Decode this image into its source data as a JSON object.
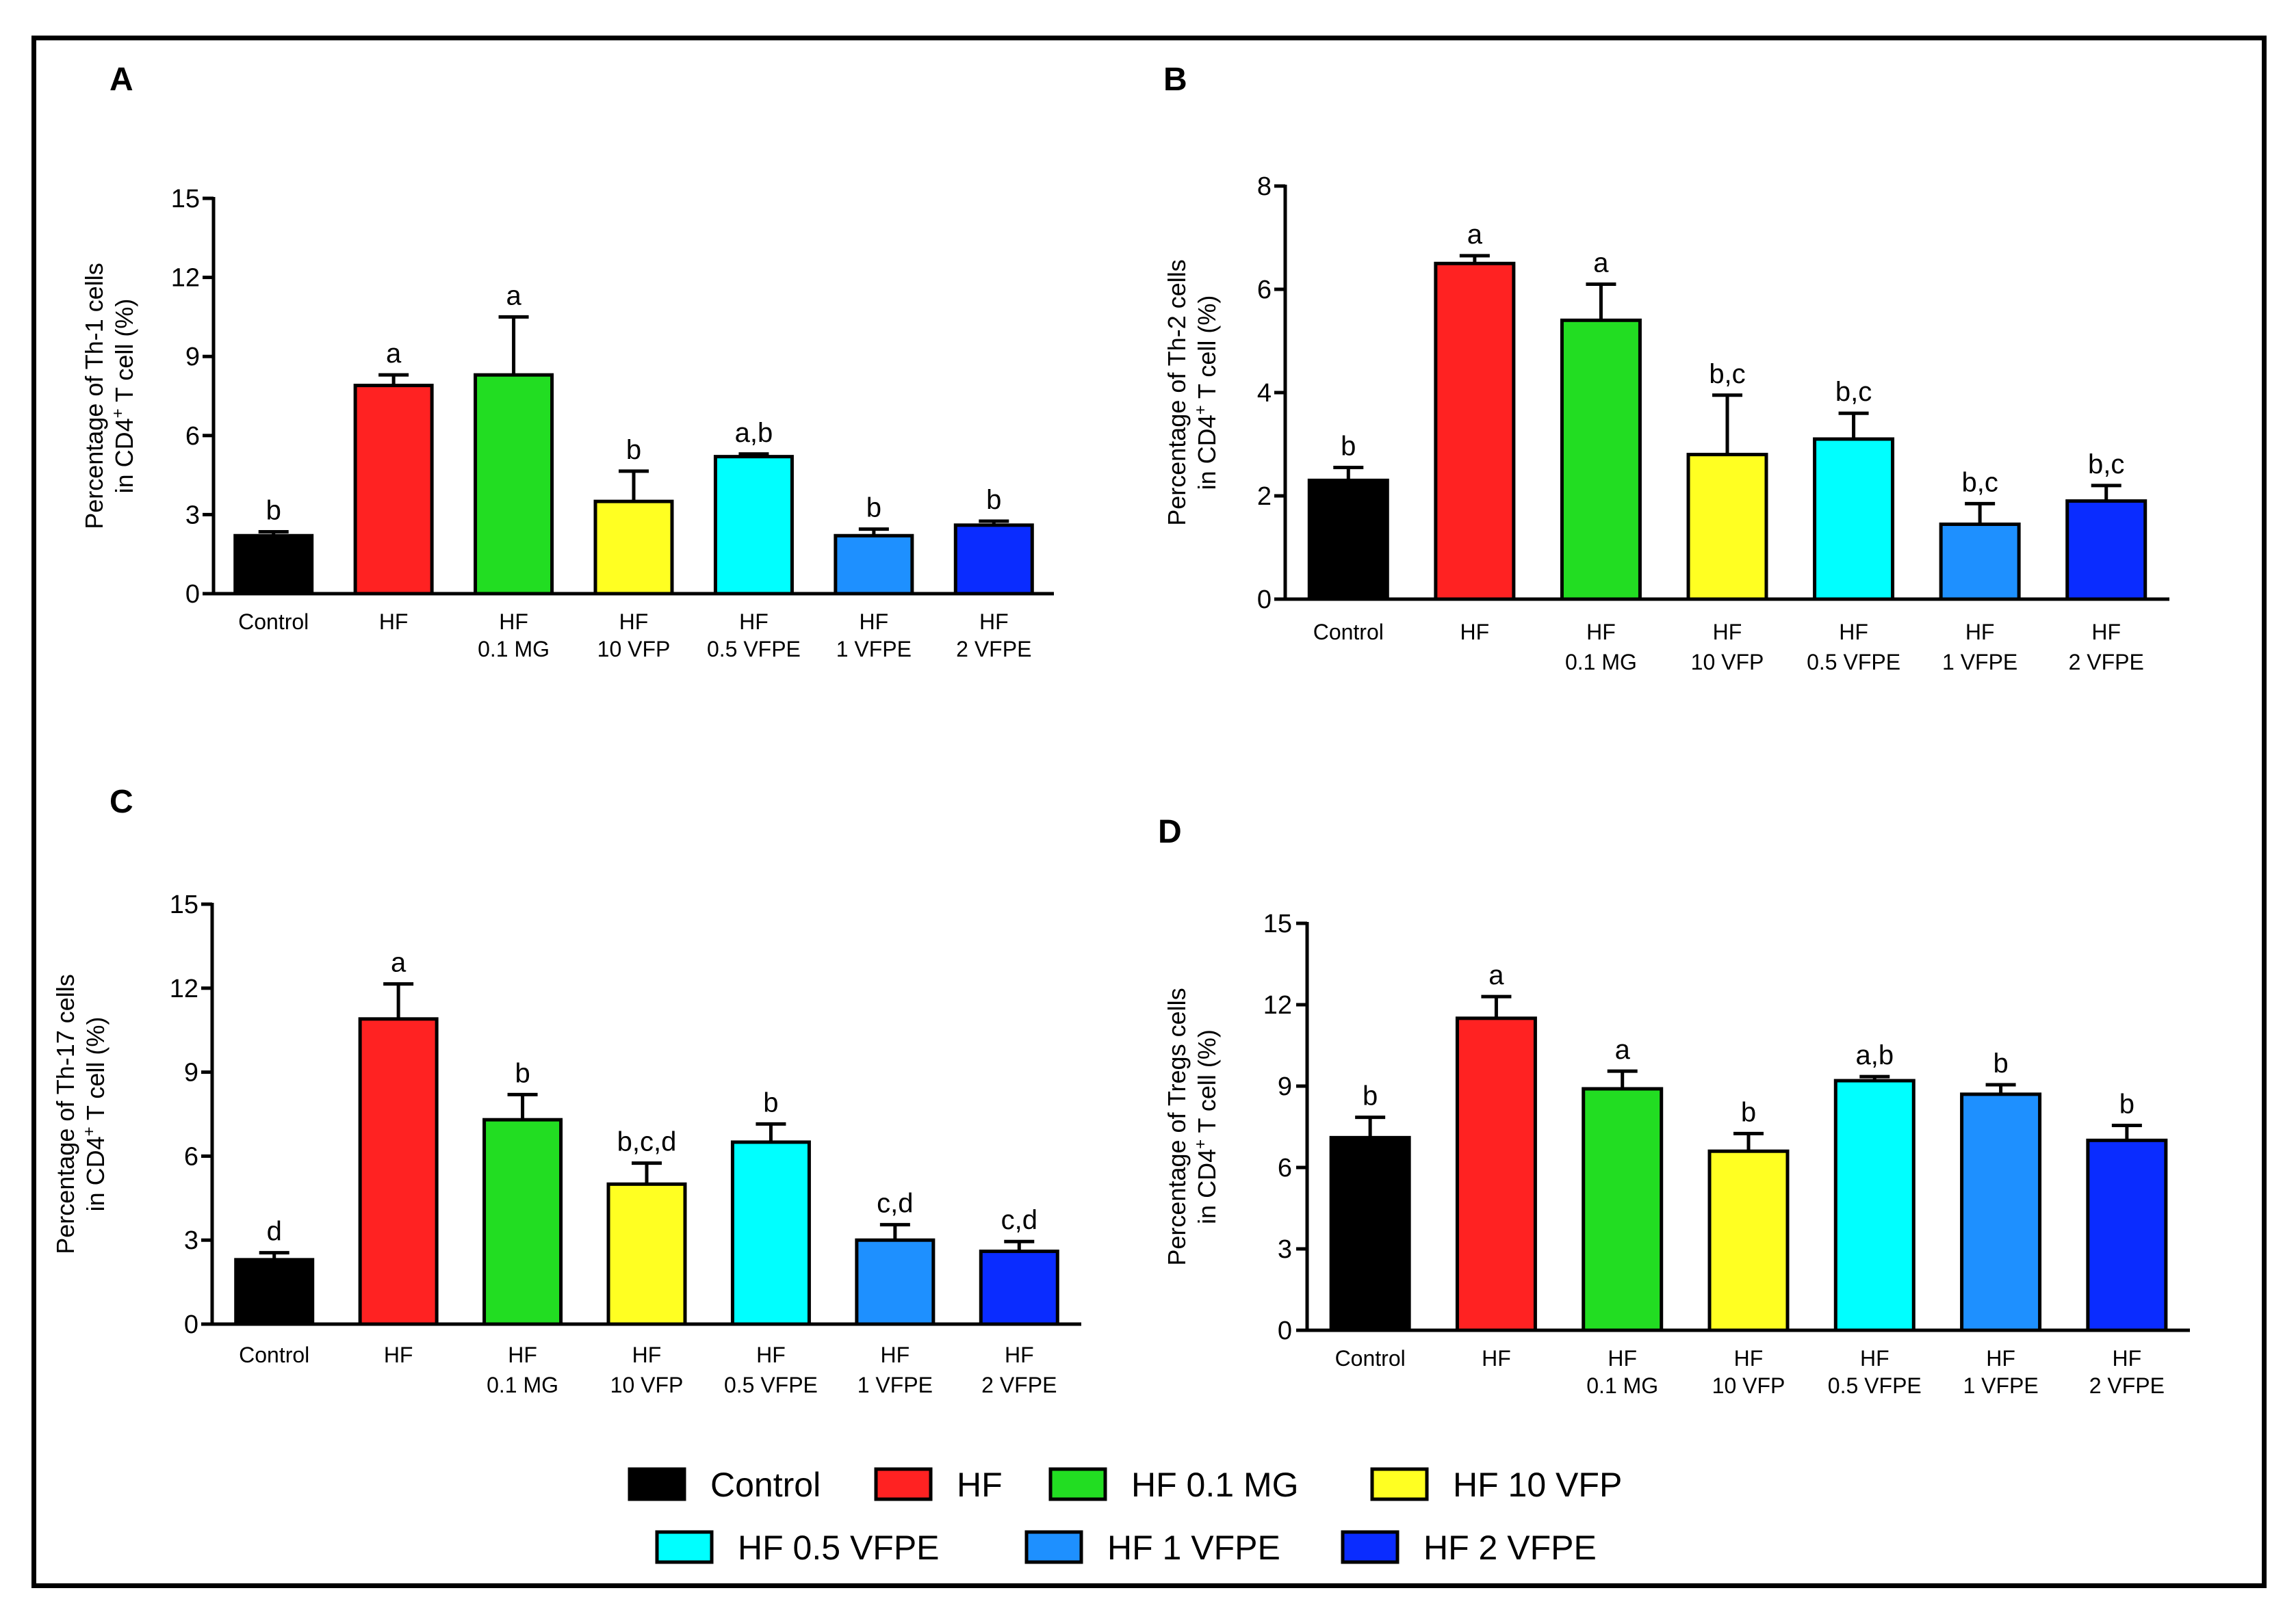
{
  "colors": {
    "Control": "#000000",
    "HF": "#ff2222",
    "HF 0.1 MG": "#22dd22",
    "HF 10 VFP": "#ffff22",
    "HF 0.5  VFPE": "#00ffff",
    "HF 1 VFPE": "#1e90ff",
    "HF 2 VFPE": "#0a2cff"
  },
  "legend": {
    "items": [
      "Control",
      "HF",
      "HF 0.1 MG",
      "HF 10 VFP",
      "HF 0.5  VFPE",
      "HF 1 VFPE",
      "HF 2 VFPE"
    ]
  },
  "chart_data": [
    {
      "panel": "A",
      "type": "bar",
      "ylabel_line1": "Percentage of Th-1 cells",
      "ylabel_line2": "in CD4",
      "ylabel_sup": "+",
      "ylabel_line2_end": " T cell (%)",
      "ylim": [
        0,
        15
      ],
      "yticks": [
        0,
        3,
        6,
        9,
        12,
        15
      ],
      "categories": [
        [
          "Control"
        ],
        [
          "HF"
        ],
        [
          "HF",
          "0.1 MG"
        ],
        [
          "HF",
          "10 VFP"
        ],
        [
          "HF",
          "0.5  VFPE"
        ],
        [
          "HF",
          "1 VFPE"
        ],
        [
          "HF",
          "2 VFPE"
        ]
      ],
      "values": [
        2.2,
        7.9,
        8.3,
        3.5,
        5.2,
        2.2,
        2.6
      ],
      "errors": [
        0.15,
        0.4,
        2.2,
        1.15,
        0.1,
        0.25,
        0.15
      ],
      "significance": [
        "b",
        "a",
        "a",
        "b",
        "a,b",
        "b",
        "b"
      ]
    },
    {
      "panel": "B",
      "type": "bar",
      "ylabel_line1": "Percentage of Th-2 cells",
      "ylabel_line2": "in CD4",
      "ylabel_sup": "+",
      "ylabel_line2_end": " T cell (%)",
      "ylim": [
        0,
        8
      ],
      "yticks": [
        0,
        2,
        4,
        6,
        8
      ],
      "categories": [
        [
          "Control"
        ],
        [
          "HF"
        ],
        [
          "HF",
          "0.1 MG"
        ],
        [
          "HF",
          "10 VFP"
        ],
        [
          "HF",
          "0.5   VFPE"
        ],
        [
          "HF",
          "1 VFPE"
        ],
        [
          "HF",
          "2 VFPE"
        ]
      ],
      "values": [
        2.3,
        6.5,
        5.4,
        2.8,
        3.1,
        1.45,
        1.9
      ],
      "errors": [
        0.25,
        0.15,
        0.7,
        1.15,
        0.5,
        0.4,
        0.3
      ],
      "significance": [
        "b",
        "a",
        "a",
        "b,c",
        "b,c",
        "b,c",
        "b,c"
      ]
    },
    {
      "panel": "C",
      "type": "bar",
      "ylabel_line1": "Percentage of Th-17 cells",
      "ylabel_line2": "in CD4",
      "ylabel_sup": "+",
      "ylabel_line2_end": " T cell (%)",
      "ylim": [
        0,
        15
      ],
      "yticks": [
        0,
        3,
        6,
        9,
        12,
        15
      ],
      "categories": [
        [
          "Control"
        ],
        [
          "HF"
        ],
        [
          "HF",
          "0.1 MG"
        ],
        [
          "HF",
          "10 VFP"
        ],
        [
          "HF",
          "0.5  VFPE"
        ],
        [
          "HF",
          "1 VFPE"
        ],
        [
          "HF",
          "2 VFPE"
        ]
      ],
      "values": [
        2.3,
        10.9,
        7.3,
        5.0,
        6.5,
        3.0,
        2.6
      ],
      "errors": [
        0.25,
        1.25,
        0.9,
        0.75,
        0.65,
        0.55,
        0.35
      ],
      "significance": [
        "d",
        "a",
        "b",
        "b,c,d",
        "b",
        "c,d",
        "c,d"
      ]
    },
    {
      "panel": "D",
      "type": "bar",
      "ylabel_line1": "Percentage of Tregs cells",
      "ylabel_line2": "in CD4",
      "ylabel_sup": "+",
      "ylabel_line2_end": " T cell (%)",
      "ylim": [
        0,
        15
      ],
      "yticks": [
        0,
        3,
        6,
        9,
        12,
        15
      ],
      "categories": [
        [
          "Control"
        ],
        [
          "HF"
        ],
        [
          "HF",
          "0.1 MG"
        ],
        [
          "HF",
          "10 VFP"
        ],
        [
          "HF",
          "0.5  VFPE"
        ],
        [
          "HF",
          "1 VFPE"
        ],
        [
          "HF",
          "2 VFPE"
        ]
      ],
      "values": [
        7.1,
        11.5,
        8.9,
        6.6,
        9.2,
        8.7,
        7.0
      ],
      "errors": [
        0.75,
        0.8,
        0.65,
        0.65,
        0.15,
        0.35,
        0.55
      ],
      "significance": [
        "b",
        "a",
        "a",
        "b",
        "a,b",
        "b",
        "b"
      ]
    }
  ]
}
